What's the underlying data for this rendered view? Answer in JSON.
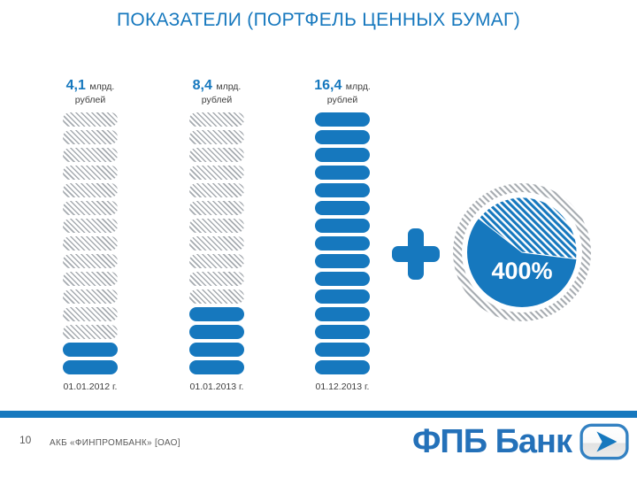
{
  "colors": {
    "accent": "#1678BE",
    "hatch_gray": "#A6ABB0",
    "text_dark": "#3E3E3E",
    "footer_gray": "#5A5A5A",
    "logo_blue": "#2471B9"
  },
  "title": "ПОКАЗАТЕЛИ (ПОРТФЕЛЬ ЦЕННЫХ БУМАГ)",
  "chart_data": {
    "type": "bar",
    "variant": "pictogram-pill-stack",
    "title": "ПОКАЗАТЕЛИ (ПОРТФЕЛЬ ЦЕННЫХ БУМАГ)",
    "unit": "млрд. рублей",
    "categories": [
      "01.01.2012 г.",
      "01.01.2013 г.",
      "01.12.2013 г."
    ],
    "values": [
      4.1,
      8.4,
      16.4
    ],
    "total_segments": 15,
    "columns": [
      {
        "value": "4,1",
        "unit_inline": "млрд.",
        "unit_below": "рублей",
        "date": "01.01.2012 г.",
        "filled_segments": 2
      },
      {
        "value": "8,4",
        "unit_inline": "млрд.",
        "unit_below": "рублей",
        "date": "01.01.2013 г.",
        "filled_segments": 4
      },
      {
        "value": "16,4",
        "unit_inline": "млрд.",
        "unit_below": "рублей",
        "date": "01.12.2013 г.",
        "filled_segments": 15
      }
    ],
    "annotation": {
      "plus": "+",
      "growth_label": "400%"
    },
    "legend_position": "none",
    "grid": false
  },
  "footer": {
    "page_number": "10",
    "company": "АКБ «ФИНПРОМБАНК» [ОАО]",
    "logo_text": "ФПБ Банк"
  }
}
